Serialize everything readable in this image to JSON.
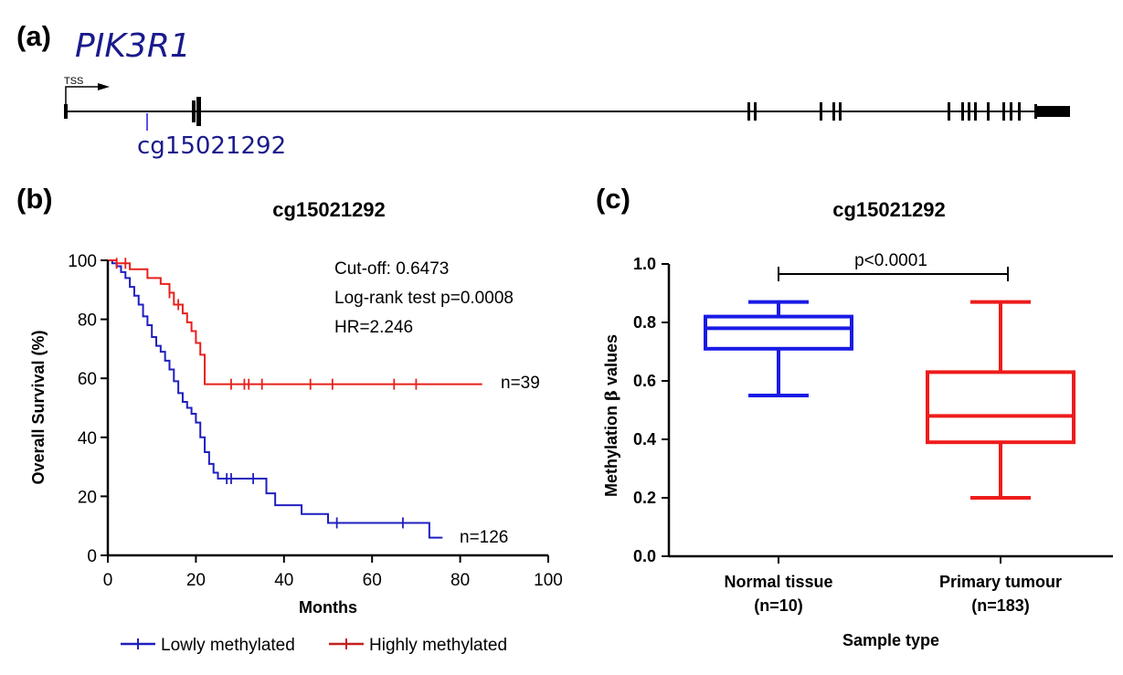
{
  "panel_a": {
    "label": "(a)",
    "gene": "PIK3R1",
    "tss_label": "TSS",
    "probe": "cg15021292"
  },
  "chart_data": [
    {
      "panel": "(b)",
      "type": "line",
      "subtype": "kaplan-meier",
      "title": "cg15021292",
      "xlabel": "Months",
      "ylabel": "Overall Survival (%)",
      "xlim": [
        0,
        100
      ],
      "ylim": [
        0,
        100
      ],
      "xticks": [
        0,
        20,
        40,
        60,
        80,
        100
      ],
      "yticks": [
        0,
        20,
        40,
        60,
        80,
        100
      ],
      "annotations": [
        "Cut-off: 0.6473",
        "Log-rank test p=0.0008",
        "HR=2.246"
      ],
      "legend": [
        "Lowly methylated",
        "Highly methylated"
      ],
      "series": [
        {
          "name": "Lowly methylated",
          "n_label": "n=126",
          "color": "#1f1fbf",
          "steps": [
            [
              0,
              100
            ],
            [
              1,
              99
            ],
            [
              2,
              98
            ],
            [
              3,
              96
            ],
            [
              4,
              94
            ],
            [
              5,
              91
            ],
            [
              6,
              88
            ],
            [
              7,
              85
            ],
            [
              8,
              81
            ],
            [
              9,
              78
            ],
            [
              10,
              74
            ],
            [
              11,
              71
            ],
            [
              12,
              69
            ],
            [
              13,
              66
            ],
            [
              14,
              63
            ],
            [
              15,
              59
            ],
            [
              16,
              55
            ],
            [
              17,
              52
            ],
            [
              18,
              50
            ],
            [
              19,
              48
            ],
            [
              20,
              45
            ],
            [
              21,
              40
            ],
            [
              22,
              35
            ],
            [
              23,
              31
            ],
            [
              24,
              28
            ],
            [
              25,
              26
            ],
            [
              35,
              26
            ],
            [
              36,
              21
            ],
            [
              38,
              17
            ],
            [
              44,
              14
            ],
            [
              50,
              11
            ],
            [
              72,
              11
            ],
            [
              73,
              6
            ],
            [
              76,
              6
            ]
          ],
          "censored": [
            27,
            28,
            33,
            52,
            67
          ],
          "end_x": 76
        },
        {
          "name": "Highly methylated",
          "n_label": "n=39",
          "color": "#e8201d",
          "steps": [
            [
              0,
              100
            ],
            [
              2,
              99
            ],
            [
              5,
              97
            ],
            [
              9,
              94
            ],
            [
              12,
              92
            ],
            [
              14,
              89
            ],
            [
              15,
              85
            ],
            [
              17,
              82
            ],
            [
              18,
              79
            ],
            [
              19,
              76
            ],
            [
              20,
              72
            ],
            [
              21,
              68
            ],
            [
              22,
              58
            ],
            [
              85,
              58
            ]
          ],
          "censored": [
            2,
            4,
            14,
            16,
            28,
            31,
            32,
            35,
            46,
            51,
            65,
            70
          ],
          "end_x": 85
        }
      ]
    },
    {
      "panel": "(c)",
      "type": "boxplot",
      "title": "cg15021292",
      "xlabel": "Sample type",
      "ylabel_prefix": "Methylation",
      "ylabel_beta": "β",
      "ylabel_suffix": "values",
      "ylim": [
        0,
        1
      ],
      "yticks": [
        "0.0",
        "0.2",
        "0.4",
        "0.6",
        "0.8",
        "1.0"
      ],
      "significance": "p<0.0001",
      "groups": [
        {
          "name": "Normal tissue",
          "n": "(n=10)",
          "color": "#1a1ae6",
          "min": 0.55,
          "q1": 0.71,
          "median": 0.78,
          "q3": 0.82,
          "max": 0.87
        },
        {
          "name": "Primary tumour",
          "n": "(n=183)",
          "color": "#ee1c1c",
          "min": 0.2,
          "q1": 0.39,
          "median": 0.48,
          "q3": 0.63,
          "max": 0.87
        }
      ]
    }
  ]
}
